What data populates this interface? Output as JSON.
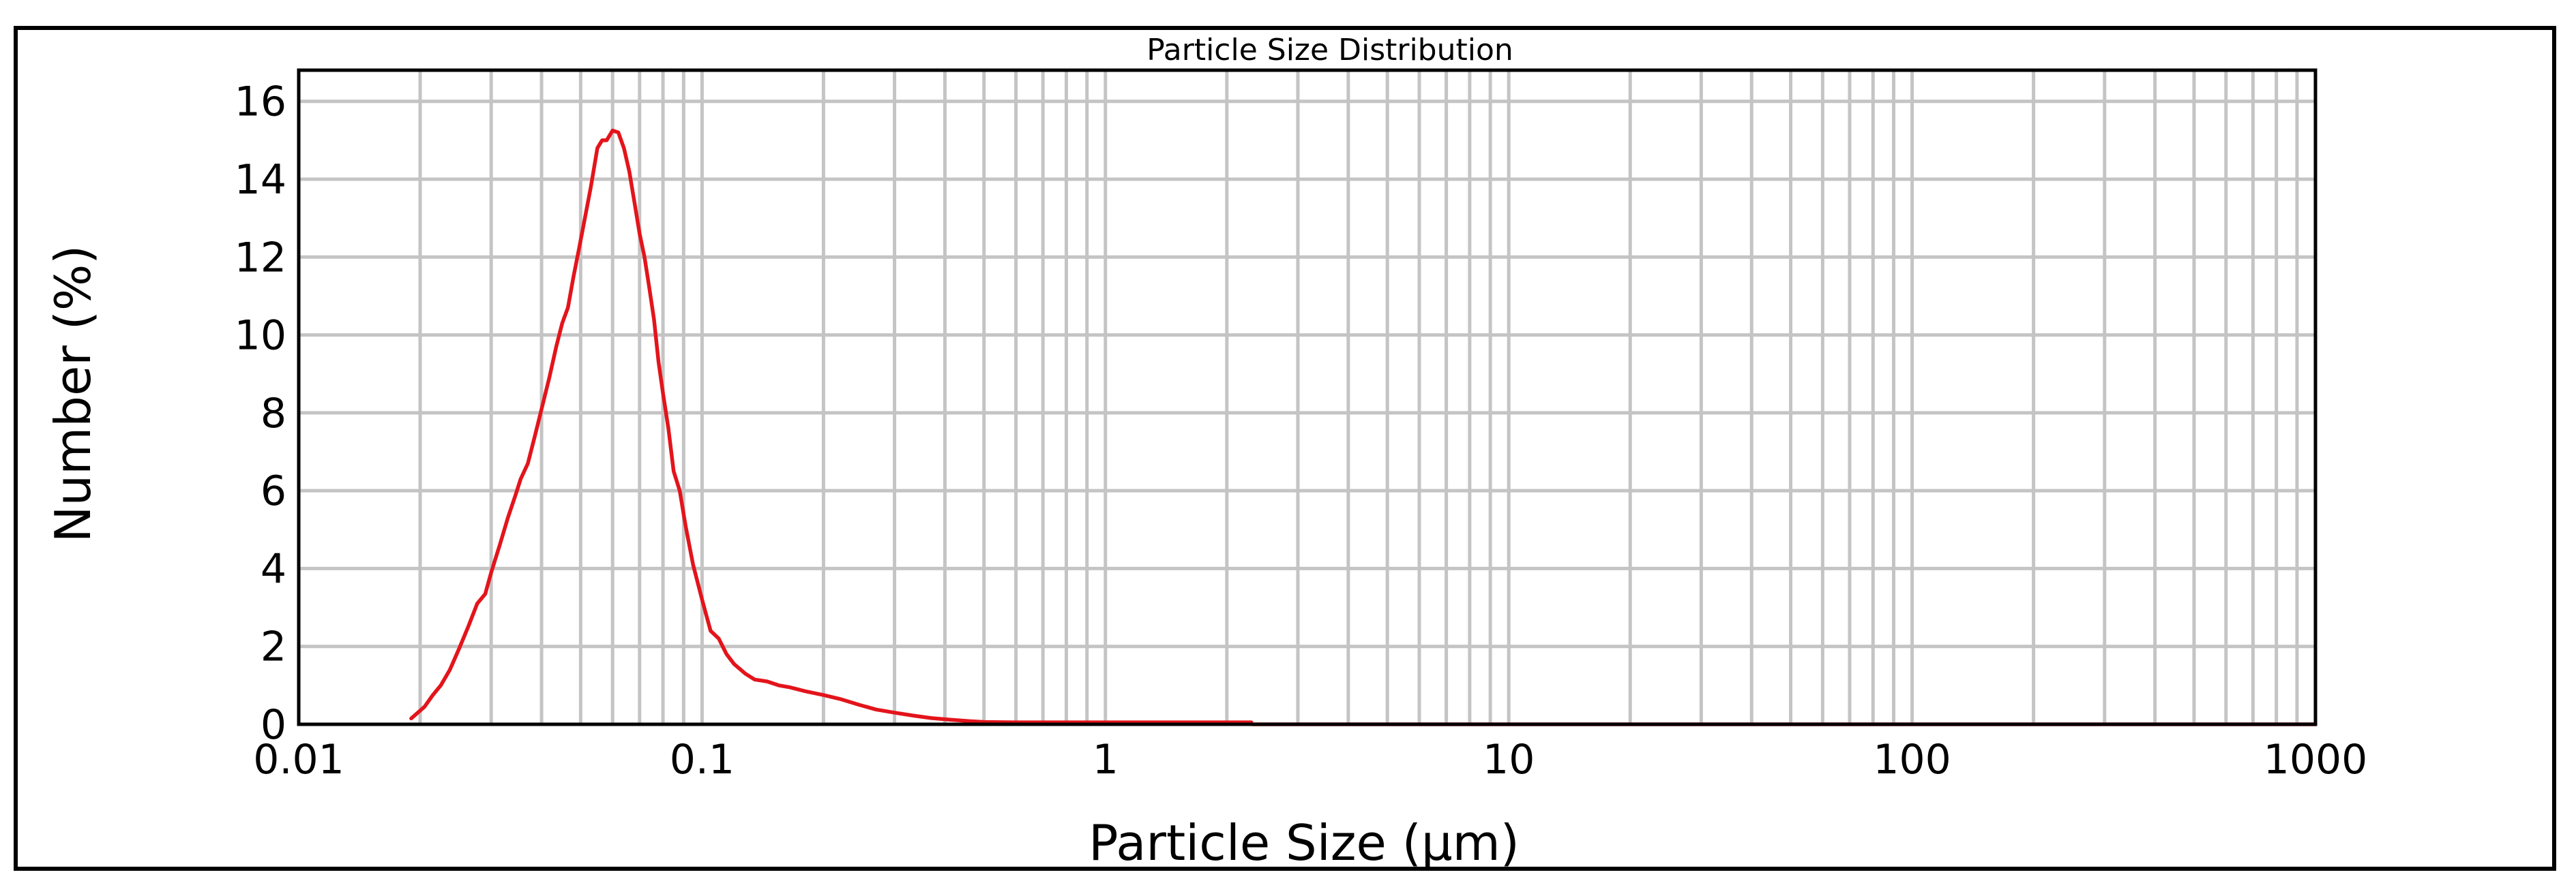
{
  "chart_data": {
    "type": "line",
    "title": "Particle Size Distribution",
    "xlabel": "Particle Size (µm)",
    "ylabel": "Number (%)",
    "x_scale": "log",
    "xlim": [
      0.01,
      1000
    ],
    "ylim": [
      0,
      16.8
    ],
    "x_ticks": [
      0.01,
      0.1,
      1,
      10,
      100,
      1000
    ],
    "x_tick_labels": [
      "0.01",
      "0.1",
      "1",
      "10",
      "100",
      "1000"
    ],
    "y_ticks": [
      0,
      2,
      4,
      6,
      8,
      10,
      12,
      14,
      16
    ],
    "y_tick_labels": [
      "0",
      "2",
      "4",
      "6",
      "8",
      "10",
      "12",
      "14",
      "16"
    ],
    "grid": true,
    "legend": "none",
    "series": [
      {
        "color": "#e3141b",
        "x": [
          0.019,
          0.0205,
          0.0215,
          0.0225,
          0.0237,
          0.025,
          0.0263,
          0.0277,
          0.029,
          0.03,
          0.0315,
          0.033,
          0.0345,
          0.0355,
          0.037,
          0.0385,
          0.04,
          0.0418,
          0.0435,
          0.045,
          0.0465,
          0.048,
          0.0495,
          0.051,
          0.053,
          0.055,
          0.0565,
          0.058,
          0.06,
          0.062,
          0.064,
          0.066,
          0.068,
          0.07,
          0.072,
          0.074,
          0.076,
          0.078,
          0.08,
          0.0825,
          0.085,
          0.088,
          0.091,
          0.095,
          0.1,
          0.105,
          0.11,
          0.115,
          0.12,
          0.128,
          0.135,
          0.145,
          0.155,
          0.165,
          0.18,
          0.2,
          0.22,
          0.245,
          0.27,
          0.3,
          0.335,
          0.37,
          0.41,
          0.46,
          0.5,
          0.6,
          0.8,
          1.0,
          1.5,
          2.0,
          2.3,
          2.31,
          10,
          100,
          1000
        ],
        "y": [
          0.15,
          0.45,
          0.75,
          1.0,
          1.4,
          1.95,
          2.5,
          3.1,
          3.35,
          3.9,
          4.6,
          5.3,
          5.9,
          6.3,
          6.7,
          7.4,
          8.1,
          8.9,
          9.7,
          10.3,
          10.7,
          11.5,
          12.2,
          12.9,
          13.8,
          14.8,
          15.0,
          15.0,
          15.25,
          15.2,
          14.8,
          14.2,
          13.4,
          12.6,
          12.0,
          11.2,
          10.4,
          9.3,
          8.5,
          7.6,
          6.5,
          6.0,
          5.1,
          4.1,
          3.2,
          2.4,
          2.2,
          1.8,
          1.55,
          1.3,
          1.15,
          1.1,
          1.0,
          0.95,
          0.85,
          0.75,
          0.65,
          0.5,
          0.38,
          0.3,
          0.22,
          0.16,
          0.12,
          0.08,
          0.06,
          0.05,
          0.05,
          0.05,
          0.05,
          0.05,
          0.05,
          0.0,
          0.0,
          0.0,
          0.0
        ]
      }
    ]
  }
}
